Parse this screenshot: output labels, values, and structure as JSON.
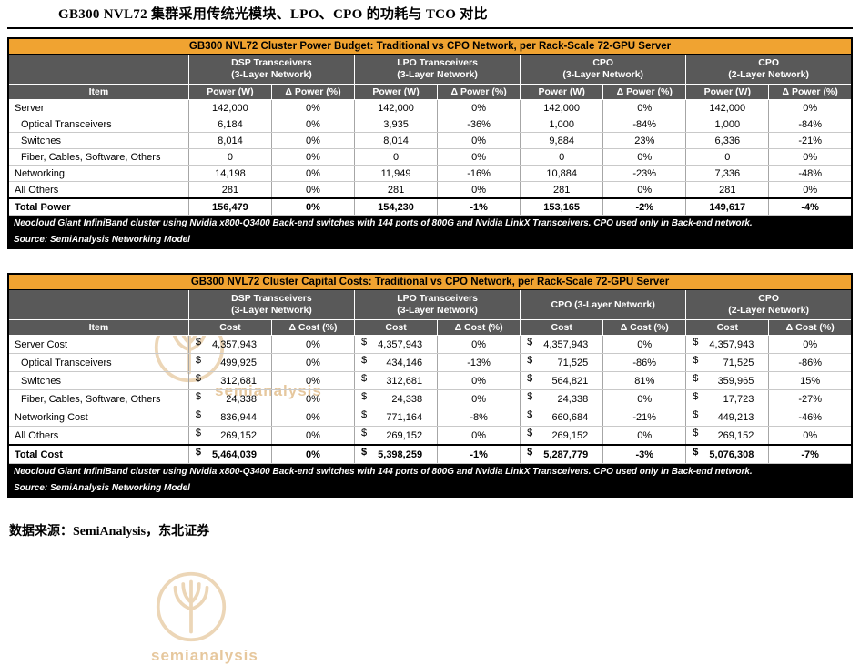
{
  "page": {
    "title": "GB300 NVL72 集群采用传统光模块、LPO、CPO 的功耗与 TCO 对比",
    "bottom_source": "数据来源：SemiAnalysis，东北证券"
  },
  "watermark": {
    "brand": "semianalysis",
    "icon": "tree-logo"
  },
  "colors": {
    "header_orange": "#F0A331",
    "header_gray": "#595959",
    "note_bg": "#000000",
    "watermark": "#D29B4E"
  },
  "power_table": {
    "title": "GB300 NVL72 Cluster Power Budget: Traditional vs CPO Network, per Rack-Scale 72-GPU Server",
    "item_header": "Item",
    "value_header": "Power (W)",
    "delta_header": "Δ Power (%)",
    "group_headers": [
      "DSP Transceivers\n(3-Layer Network)",
      "LPO Transceivers\n(3-Layer Network)",
      "CPO\n(3-Layer Network)",
      "CPO\n(2-Layer Network)"
    ],
    "rows": [
      {
        "item": "Server",
        "indent": false,
        "total": false,
        "values": [
          "142,000",
          "0%",
          "142,000",
          "0%",
          "142,000",
          "0%",
          "142,000",
          "0%"
        ]
      },
      {
        "item": "Optical Transceivers",
        "indent": true,
        "total": false,
        "values": [
          "6,184",
          "0%",
          "3,935",
          "-36%",
          "1,000",
          "-84%",
          "1,000",
          "-84%"
        ]
      },
      {
        "item": "Switches",
        "indent": true,
        "total": false,
        "values": [
          "8,014",
          "0%",
          "8,014",
          "0%",
          "9,884",
          "23%",
          "6,336",
          "-21%"
        ]
      },
      {
        "item": "Fiber, Cables, Software, Others",
        "indent": true,
        "total": false,
        "values": [
          "0",
          "0%",
          "0",
          "0%",
          "0",
          "0%",
          "0",
          "0%"
        ]
      },
      {
        "item": "Networking",
        "indent": false,
        "total": false,
        "values": [
          "14,198",
          "0%",
          "11,949",
          "-16%",
          "10,884",
          "-23%",
          "7,336",
          "-48%"
        ]
      },
      {
        "item": "All Others",
        "indent": false,
        "total": false,
        "values": [
          "281",
          "0%",
          "281",
          "0%",
          "281",
          "0%",
          "281",
          "0%"
        ]
      },
      {
        "item": "Total Power",
        "indent": false,
        "total": true,
        "values": [
          "156,479",
          "0%",
          "154,230",
          "-1%",
          "153,165",
          "-2%",
          "149,617",
          "-4%"
        ]
      }
    ],
    "note": "Neocloud Giant InfiniBand cluster using Nvidia x800-Q3400 Back-end switches with 144 ports of 800G and Nvidia LinkX Transceivers. CPO used only in Back-end network.",
    "source": "Source: SemiAnalysis Networking Model"
  },
  "cost_table": {
    "title": "GB300 NVL72 Cluster Capital Costs: Traditional vs CPO Network, per Rack-Scale 72-GPU Server",
    "item_header": "Item",
    "value_header": "Cost",
    "delta_header": "Δ Cost (%)",
    "group_headers": [
      "DSP Transceivers\n(3-Layer Network)",
      "LPO Transceivers\n(3-Layer Network)",
      "CPO (3-Layer Network)",
      "CPO\n(2-Layer Network)"
    ],
    "rows": [
      {
        "item": "Server Cost",
        "indent": false,
        "total": false,
        "values": [
          "$ 4,357,943",
          "0%",
          "$ 4,357,943",
          "0%",
          "$ 4,357,943",
          "0%",
          "$ 4,357,943",
          "0%"
        ]
      },
      {
        "item": "Optical Transceivers",
        "indent": true,
        "total": false,
        "values": [
          "$ 499,925",
          "0%",
          "$ 434,146",
          "-13%",
          "$ 71,525",
          "-86%",
          "$ 71,525",
          "-86%"
        ]
      },
      {
        "item": "Switches",
        "indent": true,
        "total": false,
        "values": [
          "$ 312,681",
          "0%",
          "$ 312,681",
          "0%",
          "$ 564,821",
          "81%",
          "$ 359,965",
          "15%"
        ]
      },
      {
        "item": "Fiber, Cables, Software, Others",
        "indent": true,
        "total": false,
        "values": [
          "$ 24,338",
          "0%",
          "$ 24,338",
          "0%",
          "$ 24,338",
          "0%",
          "$ 17,723",
          "-27%"
        ]
      },
      {
        "item": "Networking Cost",
        "indent": false,
        "total": false,
        "values": [
          "$ 836,944",
          "0%",
          "$ 771,164",
          "-8%",
          "$ 660,684",
          "-21%",
          "$ 449,213",
          "-46%"
        ]
      },
      {
        "item": "All Others",
        "indent": false,
        "total": false,
        "values": [
          "$ 269,152",
          "0%",
          "$ 269,152",
          "0%",
          "$ 269,152",
          "0%",
          "$ 269,152",
          "0%"
        ]
      },
      {
        "item": "Total Cost",
        "indent": false,
        "total": true,
        "values": [
          "$ 5,464,039",
          "0%",
          "$ 5,398,259",
          "-1%",
          "$ 5,287,779",
          "-3%",
          "$ 5,076,308",
          "-7%"
        ]
      }
    ],
    "note": "Neocloud Giant InfiniBand cluster using Nvidia x800-Q3400 Back-end switches with 144 ports of 800G and Nvidia LinkX Transceivers. CPO used only in Back-end network.",
    "source": "Source: SemiAnalysis Networking Model"
  }
}
